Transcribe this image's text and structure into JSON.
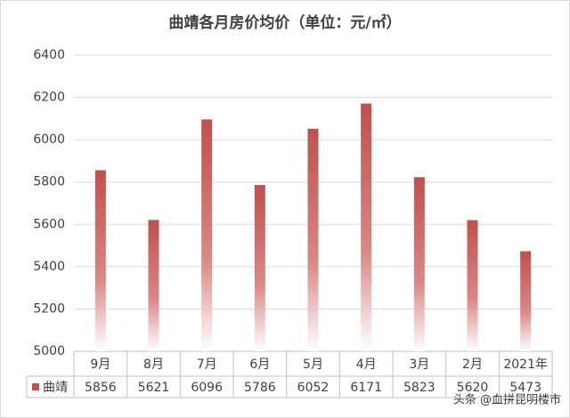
{
  "chart_data": {
    "type": "bar",
    "title": "曲靖各月房价均价（单位：元/㎡）",
    "categories": [
      "9月",
      "8月",
      "7月",
      "6月",
      "5月",
      "4月",
      "3月",
      "2月",
      "2021年"
    ],
    "series": [
      {
        "name": "曲靖",
        "color": "#c0504d",
        "values": [
          5856,
          5621,
          6096,
          5786,
          6052,
          6171,
          5823,
          5620,
          5473
        ]
      }
    ],
    "ylim": [
      5000,
      6400
    ],
    "yticks": [
      5000,
      5200,
      5400,
      5600,
      5800,
      6000,
      6200,
      6400
    ],
    "grid": true,
    "watermark": "头条 @血拼昆明楼市"
  }
}
